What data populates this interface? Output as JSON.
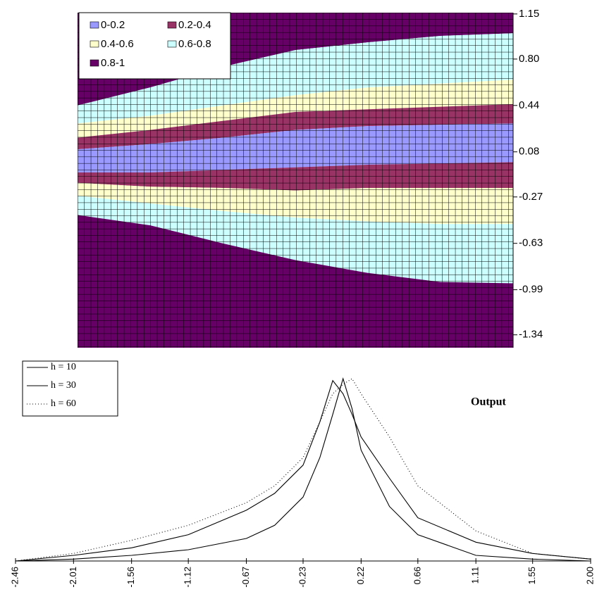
{
  "chart_data": [
    {
      "type": "contour",
      "legend": [
        {
          "name": "0-0.2",
          "color": "#9999ff"
        },
        {
          "name": "0.2-0.4",
          "color": "#993366"
        },
        {
          "name": "0.4-0.6",
          "color": "#ffffcc"
        },
        {
          "name": "0.6-0.8",
          "color": "#ccffff"
        },
        {
          "name": "0.8-1",
          "color": "#660066"
        }
      ],
      "bands": [
        {
          "color": "#660066",
          "values": [
            0.44,
            0.58,
            0.74,
            0.87,
            0.93,
            0.98,
            1.0
          ]
        },
        {
          "color": "#ccffff",
          "values": [
            0.3,
            0.36,
            0.44,
            0.52,
            0.58,
            0.61,
            0.64
          ]
        },
        {
          "color": "#ffffcc",
          "values": [
            0.19,
            0.25,
            0.32,
            0.39,
            0.41,
            0.43,
            0.45
          ]
        },
        {
          "color": "#993366",
          "values": [
            0.1,
            0.14,
            0.19,
            0.25,
            0.28,
            0.29,
            0.3
          ]
        },
        {
          "color": "#9999ff",
          "values": [
            -0.08,
            -0.08,
            -0.06,
            -0.04,
            -0.02,
            -0.01,
            0.0
          ]
        },
        {
          "color": "#993366",
          "values": [
            -0.16,
            -0.19,
            -0.2,
            -0.22,
            -0.2,
            -0.2,
            -0.2
          ]
        },
        {
          "color": "#ffffcc",
          "values": [
            -0.26,
            -0.32,
            -0.38,
            -0.43,
            -0.46,
            -0.48,
            -0.48
          ]
        },
        {
          "color": "#ccffff",
          "values": [
            -0.41,
            -0.49,
            -0.63,
            -0.76,
            -0.86,
            -0.93,
            -0.94
          ]
        },
        {
          "color": "#660066"
        }
      ],
      "ylim": [
        -1.44,
        1.16
      ],
      "yticks": [
        1.15,
        {
          "value": 0.8,
          "label": "0.80"
        },
        0.44,
        0.08,
        -0.27,
        -0.63,
        -0.99,
        -1.34
      ],
      "grid": true
    },
    {
      "type": "line",
      "annotation": "Output",
      "x": [
        -2.46,
        -2.01,
        -1.56,
        -1.12,
        -0.67,
        -0.45,
        -0.23,
        -0.1,
        0.0,
        0.08,
        0.15,
        0.22,
        0.44,
        0.66,
        1.11,
        1.55,
        2.0
      ],
      "series": [
        {
          "name": "h = 10",
          "color": "#000000",
          "style": "solid",
          "values": [
            0,
            0.01,
            0.03,
            0.06,
            0.12,
            0.19,
            0.34,
            0.55,
            0.78,
            0.97,
            0.81,
            0.59,
            0.29,
            0.14,
            0.03,
            0.01,
            0
          ]
        },
        {
          "name": "h = 30",
          "color": "#000000",
          "style": "solid",
          "values": [
            0,
            0.03,
            0.07,
            0.14,
            0.27,
            0.36,
            0.51,
            0.74,
            0.96,
            0.89,
            0.78,
            0.66,
            0.44,
            0.23,
            0.1,
            0.04,
            0.01
          ]
        },
        {
          "name": "h = 60",
          "color": "#000000",
          "style": "dotted",
          "values": [
            0,
            0.04,
            0.11,
            0.19,
            0.31,
            0.4,
            0.55,
            0.74,
            0.89,
            0.94,
            0.97,
            0.89,
            0.66,
            0.4,
            0.16,
            0.04,
            0.01
          ]
        }
      ],
      "xlim": [
        -2.46,
        2.0
      ],
      "xticks": [
        -2.46,
        -2.01,
        -1.56,
        -1.12,
        -0.67,
        -0.23,
        0.22,
        0.66,
        1.11,
        1.55,
        {
          "value": 2,
          "label": "2.00"
        }
      ],
      "ylim": [
        0,
        1
      ]
    }
  ]
}
